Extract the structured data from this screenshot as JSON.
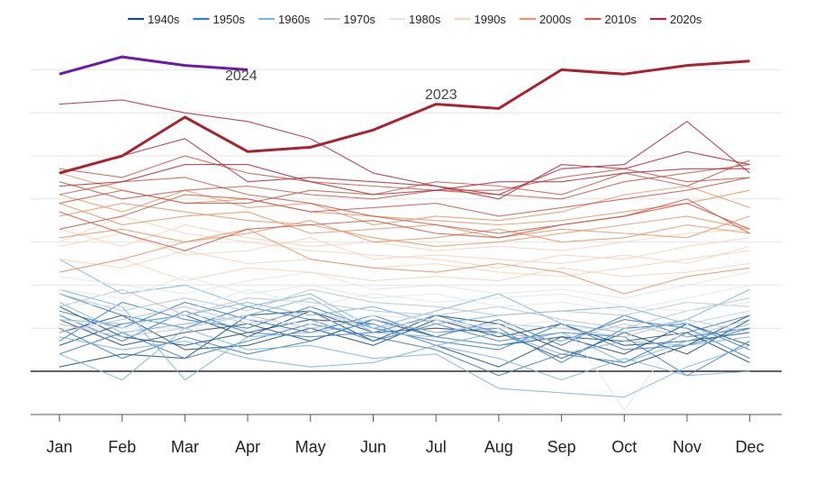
{
  "chart_data": {
    "type": "line",
    "categories": [
      "Jan",
      "Feb",
      "Mar",
      "Apr",
      "May",
      "Jun",
      "Jul",
      "Aug",
      "Sep",
      "Oct",
      "Nov",
      "Dec"
    ],
    "ylim": [
      -1.0,
      6.8
    ],
    "grid": true,
    "legend_position": "top",
    "legend": [
      {
        "label": "1940s",
        "color": "#1f4e79"
      },
      {
        "label": "1950s",
        "color": "#3a7cbf"
      },
      {
        "label": "1960s",
        "color": "#7db4dc"
      },
      {
        "label": "1970s",
        "color": "#b7c4d0"
      },
      {
        "label": "1980s",
        "color": "#dde7f0"
      },
      {
        "label": "1990s",
        "color": "#f6d3bd"
      },
      {
        "label": "2000s",
        "color": "#e8956b"
      },
      {
        "label": "2010s",
        "color": "#c95b4a"
      },
      {
        "label": "2020s",
        "color": "#ad2a3e"
      }
    ],
    "series": [
      {
        "name": "1940s",
        "color": "#1f4e79",
        "lines": [
          [
            0.1,
            0.4,
            0.3,
            1.3,
            1.4,
            0.7,
            1.3,
            1.1,
            0.5,
            0.1,
            0.6,
            1.3
          ],
          [
            1.5,
            0.8,
            0.6,
            0.9,
            1.2,
            1.1,
            0.6,
            0.1,
            0.8,
            0.4,
            1.1,
            0.6
          ],
          [
            0.6,
            1.1,
            1.3,
            0.8,
            1.4,
            0.9,
            1.0,
            0.9,
            0.3,
            0.9,
            0.4,
            1.2
          ],
          [
            1.2,
            0.6,
            0.9,
            1.1,
            0.7,
            1.2,
            0.8,
            0.6,
            0.8,
            0.7,
            0.9,
            0.2
          ],
          [
            0.9,
            1.3,
            0.5,
            0.6,
            1.0,
            0.6,
            1.2,
            0.8,
            1.1,
            0.6,
            0.7,
            0.9
          ]
        ]
      },
      {
        "name": "1950s",
        "color": "#3a7cbf",
        "lines": [
          [
            1.4,
            1.0,
            1.6,
            1.2,
            0.9,
            1.3,
            0.8,
            1.2,
            0.6,
            1.3,
            0.8,
            1.0
          ],
          [
            0.4,
            0.9,
            0.3,
            0.7,
            1.1,
            0.8,
            0.5,
            -0.1,
            0.4,
            0.2,
            0.9,
            1.3
          ],
          [
            1.8,
            1.3,
            1.0,
            1.5,
            1.2,
            0.7,
            1.1,
            0.7,
            0.9,
            0.8,
            -0.1,
            0.7
          ],
          [
            1.0,
            0.3,
            0.8,
            0.4,
            0.7,
            1.2,
            0.9,
            1.0,
            0.2,
            1.0,
            1.1,
            0.5
          ],
          [
            0.7,
            1.6,
            1.2,
            1.0,
            1.5,
            1.0,
            0.7,
            0.5,
            1.1,
            0.5,
            0.6,
            1.0
          ],
          [
            1.3,
            0.7,
            1.4,
            0.9,
            0.8,
            0.9,
            1.3,
            0.9,
            0.7,
            1.2,
            1.0,
            0.3
          ]
        ]
      },
      {
        "name": "1960s",
        "color": "#7db4dc",
        "lines": [
          [
            2.6,
            1.8,
            2.0,
            1.5,
            1.8,
            1.0,
            1.4,
            1.8,
            1.1,
            0.9,
            1.2,
            1.9
          ],
          [
            0.4,
            -0.2,
            1.0,
            0.5,
            0.6,
            0.3,
            0.4,
            -0.4,
            -0.5,
            -0.6,
            0.1,
            0.6
          ],
          [
            1.9,
            1.5,
            -0.2,
            0.8,
            0.9,
            1.1,
            0.6,
            0.9,
            0.4,
            0.7,
            0.6,
            0.8
          ],
          [
            1.2,
            1.1,
            1.3,
            1.6,
            1.3,
            1.5,
            1.1,
            1.3,
            1.4,
            1.5,
            1.1,
            1.4
          ],
          [
            0.8,
            0.5,
            0.7,
            0.3,
            0.1,
            0.2,
            0.6,
            0.3,
            -0.2,
            0.3,
            -0.1,
            0.0
          ],
          [
            1.6,
            0.9,
            1.1,
            1.3,
            1.7,
            0.9,
            0.8,
            0.6,
            0.9,
            0.2,
            0.7,
            1.1
          ]
        ]
      },
      {
        "name": "1970s",
        "color": "#b7c4d0",
        "lines": [
          [
            1.5,
            1.9,
            1.3,
            1.7,
            1.6,
            1.4,
            1.3,
            1.5,
            1.2,
            1.0,
            1.4,
            1.7
          ],
          [
            0.9,
            1.2,
            1.5,
            1.1,
            1.4,
            1.0,
            1.2,
            0.9,
            0.7,
            1.1,
            0.8,
            1.2
          ],
          [
            1.1,
            0.8,
            1.0,
            1.3,
            1.0,
            1.2,
            0.9,
            1.1,
            1.0,
            0.8,
            1.2,
            0.9
          ],
          [
            1.8,
            1.4,
            1.7,
            1.4,
            1.9,
            1.6,
            1.5,
            1.3,
            1.4,
            1.3,
            1.6,
            1.5
          ]
        ]
      },
      {
        "name": "1980s",
        "color": "#dde7f0",
        "lines": [
          [
            1.9,
            1.7,
            2.2,
            1.8,
            2.0,
            1.7,
            1.8,
            1.5,
            1.6,
            1.4,
            1.7,
            2.0
          ],
          [
            1.6,
            1.5,
            1.4,
            1.9,
            1.5,
            1.8,
            1.6,
            1.7,
            1.8,
            1.5,
            1.4,
            1.6
          ],
          [
            1.2,
            1.0,
            1.3,
            1.2,
            1.1,
            1.3,
            1.2,
            1.0,
            1.2,
            -0.9,
            1.1,
            1.4
          ],
          [
            2.2,
            2.0,
            1.8,
            2.1,
            2.3,
            1.9,
            2.0,
            1.8,
            1.9,
            1.7,
            2.0,
            2.3
          ]
        ]
      },
      {
        "name": "1990s",
        "color": "#f6d3bd",
        "lines": [
          [
            2.6,
            2.4,
            2.8,
            2.5,
            2.6,
            2.4,
            2.5,
            2.3,
            2.2,
            2.4,
            2.6,
            2.8
          ],
          [
            3.0,
            3.6,
            3.2,
            3.0,
            2.8,
            2.7,
            2.6,
            2.4,
            2.7,
            2.6,
            2.9,
            3.1
          ],
          [
            2.3,
            2.6,
            2.1,
            2.4,
            2.3,
            2.1,
            2.2,
            2.1,
            2.4,
            2.2,
            2.3,
            2.5
          ],
          [
            3.3,
            2.9,
            3.4,
            3.1,
            2.9,
            3.0,
            2.8,
            2.9,
            2.8,
            3.0,
            3.2,
            3.3
          ],
          [
            2.9,
            3.2,
            2.7,
            2.8,
            3.1,
            2.6,
            2.7,
            2.6,
            2.5,
            2.7,
            2.5,
            2.9
          ]
        ]
      },
      {
        "name": "2000s",
        "color": "#e8956b",
        "lines": [
          [
            2.3,
            2.6,
            3.0,
            3.3,
            2.6,
            2.4,
            2.3,
            2.5,
            2.3,
            1.8,
            2.2,
            2.4
          ],
          [
            3.6,
            3.9,
            3.7,
            3.5,
            3.4,
            3.1,
            2.9,
            3.0,
            3.2,
            3.4,
            3.6,
            3.3
          ],
          [
            3.9,
            3.4,
            3.6,
            3.7,
            3.2,
            3.3,
            3.4,
            3.1,
            3.3,
            3.2,
            3.1,
            3.6
          ],
          [
            3.1,
            3.3,
            3.0,
            3.2,
            3.5,
            3.0,
            3.1,
            3.3,
            3.0,
            3.1,
            3.4,
            3.2
          ],
          [
            4.6,
            4.2,
            3.9,
            4.0,
            3.7,
            3.6,
            3.5,
            3.4,
            3.5,
            3.7,
            3.9,
            4.2
          ],
          [
            4.1,
            3.7,
            4.2,
            3.8,
            3.9,
            3.4,
            3.6,
            3.5,
            3.7,
            4.1,
            4.3,
            3.8
          ]
        ]
      },
      {
        "name": "2010s",
        "color": "#c95b4a",
        "lines": [
          [
            3.7,
            3.2,
            2.8,
            3.3,
            3.4,
            3.5,
            3.2,
            3.1,
            3.4,
            3.6,
            3.9,
            3.3
          ],
          [
            4.1,
            4.4,
            4.5,
            4.1,
            3.9,
            3.6,
            3.4,
            3.2,
            3.4,
            3.6,
            4.0,
            3.2
          ],
          [
            3.3,
            3.6,
            4.1,
            4.0,
            3.7,
            3.8,
            3.9,
            3.6,
            3.8,
            4.0,
            4.2,
            4.5
          ],
          [
            4.4,
            4.0,
            4.2,
            4.3,
            4.1,
            4.0,
            4.2,
            4.1,
            4.0,
            4.4,
            4.6,
            4.8
          ],
          [
            3.9,
            4.2,
            3.9,
            3.9,
            4.2,
            4.1,
            4.4,
            4.3,
            4.1,
            4.6,
            4.3,
            4.9
          ],
          [
            4.7,
            4.5,
            5.0,
            4.6,
            4.4,
            4.3,
            4.2,
            4.2,
            4.5,
            4.7,
            4.4,
            4.5
          ]
        ]
      },
      {
        "name": "2020s",
        "color": "#ad2a3e",
        "lines": [
          [
            4.6,
            5.0,
            5.4,
            4.4,
            4.5,
            4.4,
            4.3,
            4.1,
            4.7,
            4.8,
            5.8,
            4.6
          ],
          [
            4.3,
            4.4,
            4.8,
            4.8,
            4.4,
            4.1,
            4.2,
            4.4,
            4.4,
            4.6,
            4.7,
            4.7
          ],
          [
            6.2,
            6.3,
            6.0,
            5.8,
            5.4,
            4.6,
            4.3,
            4.0,
            4.8,
            4.7,
            5.1,
            4.8
          ]
        ]
      }
    ],
    "highlight_series": [
      {
        "name": "2023",
        "color": "#a8222f",
        "values": [
          4.6,
          5.0,
          5.9,
          5.1,
          5.2,
          5.6,
          6.2,
          6.1,
          7.0,
          6.9,
          7.1,
          7.2
        ]
      },
      {
        "name": "2024",
        "color": "#6e1aa3",
        "values": [
          6.9,
          7.3,
          7.1,
          7.0
        ]
      }
    ]
  }
}
